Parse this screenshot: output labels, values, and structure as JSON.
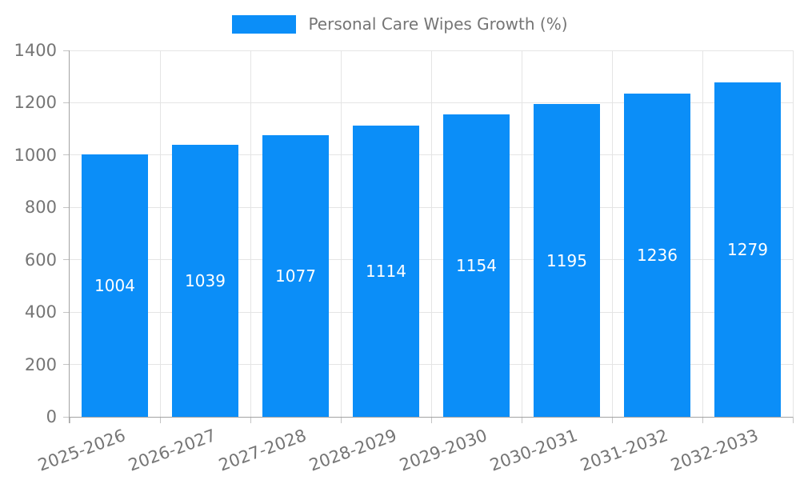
{
  "legend": {
    "label": "Personal Care Wipes Growth (%)",
    "swatch_color": "#0b8ef8"
  },
  "chart_data": {
    "type": "bar",
    "title": "",
    "xlabel": "",
    "ylabel": "",
    "categories": [
      "2025-2026",
      "2026-2027",
      "2027-2028",
      "2028-2029",
      "2029-2030",
      "2030-2031",
      "2031-2032",
      "2032-2033"
    ],
    "series": [
      {
        "name": "Personal Care Wipes Growth (%)",
        "values": [
          1004,
          1039,
          1077,
          1114,
          1154,
          1195,
          1236,
          1279
        ],
        "color": "#0b8ef8"
      }
    ],
    "ylim": [
      0,
      1400
    ],
    "yticks": [
      0,
      200,
      400,
      600,
      800,
      1000,
      1200,
      1400
    ],
    "grid": true,
    "legend_position": "top-center",
    "x_label_rotation_deg": 20,
    "value_label_position": "inside-middle",
    "value_label_color": "#ffffff"
  },
  "colors": {
    "bar": "#0b8ef8",
    "axis_line": "#a3a3a3",
    "tick_mark": "#c4c4c4",
    "tick_text": "#757575",
    "gridline": "#e4e4e4",
    "background": "#ffffff"
  }
}
